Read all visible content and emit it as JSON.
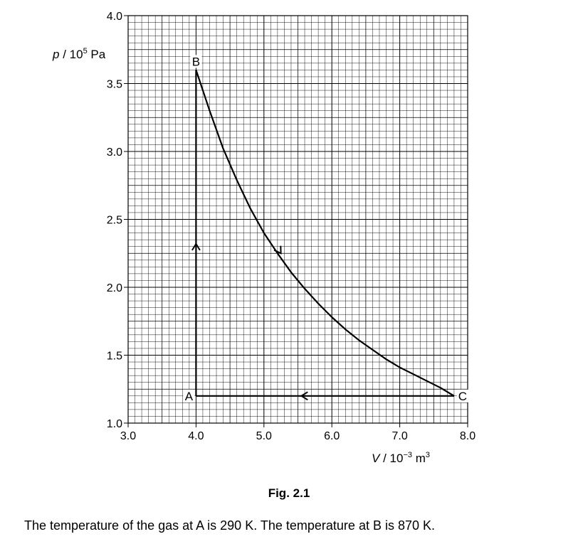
{
  "chart_data": {
    "type": "line",
    "xlabel_parts": [
      "V",
      " / 10",
      "−3",
      " m",
      "3"
    ],
    "ylabel_parts": [
      "p",
      " / 10",
      "5",
      " Pa"
    ],
    "xlim": [
      3.0,
      8.0
    ],
    "ylim": [
      1.0,
      4.0
    ],
    "x_ticks": [
      "3.0",
      "4.0",
      "5.0",
      "6.0",
      "7.0",
      "8.0"
    ],
    "y_ticks": [
      "1.0",
      "1.5",
      "2.0",
      "2.5",
      "3.0",
      "3.5",
      "4.0"
    ],
    "grid": true,
    "points": [
      {
        "label": "A",
        "x": 4.0,
        "y": 1.2
      },
      {
        "label": "B",
        "x": 4.0,
        "y": 3.6
      },
      {
        "label": "C",
        "x": 7.8,
        "y": 1.2
      }
    ],
    "series": [
      {
        "segment": "A-B",
        "x": [
          4.0,
          4.0
        ],
        "y": [
          1.2,
          3.6
        ]
      },
      {
        "segment": "B-C",
        "x": [
          4.0,
          4.2,
          4.4,
          4.6,
          4.8,
          5.0,
          5.2,
          5.4,
          5.6,
          5.8,
          6.0,
          6.2,
          6.4,
          6.6,
          6.8,
          7.0,
          7.2,
          7.4,
          7.6,
          7.8
        ],
        "y": [
          3.6,
          3.3,
          3.02,
          2.79,
          2.58,
          2.4,
          2.25,
          2.11,
          1.99,
          1.88,
          1.78,
          1.69,
          1.61,
          1.54,
          1.47,
          1.41,
          1.36,
          1.31,
          1.26,
          1.2
        ]
      },
      {
        "segment": "C-A",
        "x": [
          7.8,
          4.0
        ],
        "y": [
          1.2,
          1.2
        ]
      }
    ]
  },
  "caption": "Fig. 2.1",
  "text": "The temperature of the gas at A is 290 K. The temperature at B is 870 K."
}
